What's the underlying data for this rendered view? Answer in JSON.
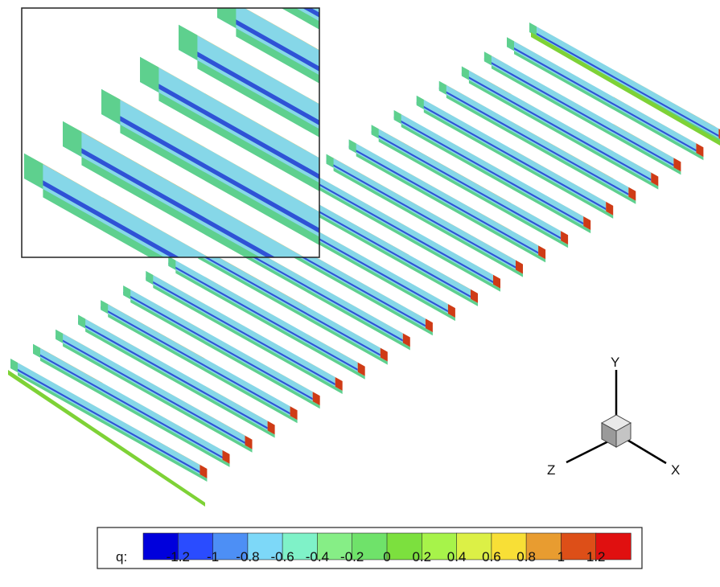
{
  "colormap": {
    "variable_label": "q:",
    "colors": [
      "#0000dc",
      "#2a4cff",
      "#4d8ff5",
      "#7dd8f8",
      "#7ff2c8",
      "#86ee86",
      "#6fe26a",
      "#7ce03e",
      "#a7f34a",
      "#dcf046",
      "#f8df36",
      "#e89c30",
      "#dd4f18",
      "#e01010"
    ],
    "tick_labels": [
      "-1.2",
      "-1",
      "-0.8",
      "-0.6",
      "-0.4",
      "-0.2",
      "0",
      "0.2",
      "0.4",
      "0.6",
      "0.8",
      "1",
      "1.2"
    ]
  },
  "axes_triad": {
    "y_label": "Y",
    "z_label": "Z",
    "x_label": "X"
  },
  "render": {
    "fin_count": 24,
    "surface_colors": {
      "top_face": "#7ed236",
      "light_face": "#86d7e8",
      "dark_edge": "#2f52d6",
      "warm_face": "#e6b52a",
      "warm_edge": "#c8861e",
      "tip_face": "#cf3b16",
      "end_face": "#5ed08e"
    }
  }
}
